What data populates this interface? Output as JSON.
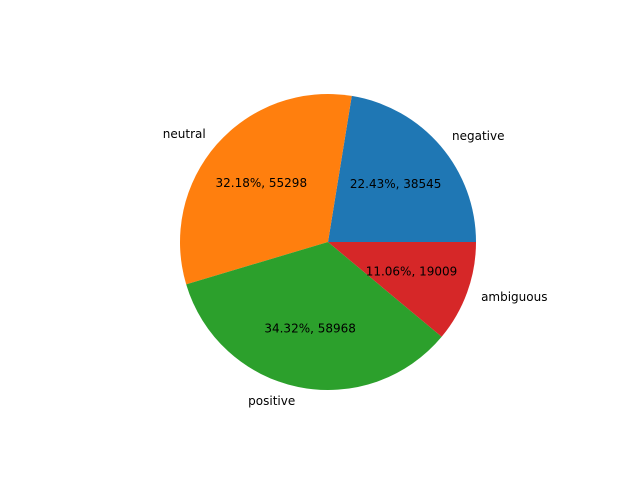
{
  "chart_data": {
    "type": "pie",
    "title": "",
    "slices": [
      {
        "label": "negative",
        "value": 38545,
        "percent_label": "22.43%, 38545",
        "color": "#1f77b4"
      },
      {
        "label": "neutral",
        "value": 55298,
        "percent_label": "32.18%, 55298",
        "color": "#ff7f0e"
      },
      {
        "label": "positive",
        "value": 58968,
        "percent_label": "34.32%, 58968",
        "color": "#2ca02c"
      },
      {
        "label": "ambiguous",
        "value": 19009,
        "percent_label": "11.06%, 19009",
        "color": "#d62728"
      }
    ],
    "start_angle_deg": 0,
    "direction": "counterclockwise",
    "legend": "none"
  }
}
